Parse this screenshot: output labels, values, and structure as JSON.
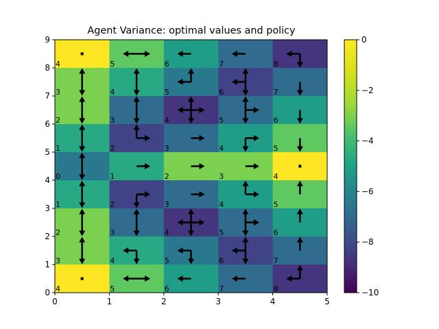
{
  "chart_data": {
    "type": "heatmap",
    "title": "Agent Variance: optimal values and policy",
    "xlabel": "",
    "ylabel": "",
    "xlim": [
      0,
      5
    ],
    "ylim": [
      0,
      9
    ],
    "x_ticks": [
      "0",
      "1",
      "2",
      "3",
      "4",
      "5"
    ],
    "y_ticks": [
      "0",
      "1",
      "2",
      "3",
      "4",
      "5",
      "6",
      "7",
      "8",
      "9"
    ],
    "colormap": "viridis",
    "colorbar": {
      "range": [
        -10,
        0
      ],
      "ticks": [
        "0",
        "−2",
        "−4",
        "−6",
        "−8",
        "−10"
      ]
    },
    "rows": [
      {
        "y": 8,
        "values": [
          0,
          -2.5,
          -4.5,
          -6.5,
          -8.5
        ],
        "labels": [
          "4",
          "5",
          "6",
          "7",
          "8"
        ],
        "arrows": [
          [],
          [
            "left",
            "right"
          ],
          [
            "left"
          ],
          [
            "left"
          ],
          [
            "left",
            "down"
          ]
        ]
      },
      {
        "y": 7,
        "values": [
          -2,
          -4,
          -6,
          -8,
          -6.5
        ],
        "labels": [
          "3",
          "4",
          "5",
          "6",
          "7"
        ],
        "arrows": [
          [
            "up",
            "down"
          ],
          [
            "up",
            "down"
          ],
          [
            "left",
            "up"
          ],
          [
            "left",
            "up",
            "down"
          ],
          [
            "down"
          ]
        ]
      },
      {
        "y": 6,
        "values": [
          -2,
          -6.5,
          -8.5,
          -6.5,
          -4.5
        ],
        "labels": [
          "2",
          "3",
          "4",
          "5",
          "6"
        ],
        "arrows": [
          [
            "up",
            "down"
          ],
          [
            "up",
            "down"
          ],
          [
            "left",
            "right",
            "up",
            "down"
          ],
          [
            "right",
            "up",
            "down"
          ],
          [
            "down"
          ]
        ]
      },
      {
        "y": 5,
        "values": [
          -4,
          -8,
          -6.5,
          -4.5,
          -2.5
        ],
        "labels": [
          "1",
          "2",
          "3",
          "4",
          "5"
        ],
        "arrows": [
          [
            "up",
            "down"
          ],
          [
            "up",
            "right"
          ],
          [
            "right"
          ],
          [
            "right",
            "down"
          ],
          [
            "down"
          ]
        ]
      },
      {
        "y": 4,
        "values": [
          -6,
          -4,
          -2,
          -2,
          0
        ],
        "labels": [
          "0",
          "1",
          "2",
          "3",
          "4"
        ],
        "arrows": [
          [
            "up",
            "down"
          ],
          [
            "right"
          ],
          [
            "right"
          ],
          [
            "right"
          ],
          []
        ]
      },
      {
        "y": 3,
        "values": [
          -4,
          -8,
          -6.5,
          -4.5,
          -2.5
        ],
        "labels": [
          "1",
          "2",
          "3",
          "4",
          "5"
        ],
        "arrows": [
          [
            "up",
            "down"
          ],
          [
            "down",
            "right"
          ],
          [
            "right"
          ],
          [
            "up",
            "right"
          ],
          [
            "up"
          ]
        ]
      },
      {
        "y": 2,
        "values": [
          -2,
          -6.5,
          -8.5,
          -6.5,
          -4.5
        ],
        "labels": [
          "2",
          "3",
          "4",
          "5",
          "6"
        ],
        "arrows": [
          [
            "up",
            "down"
          ],
          [
            "up",
            "down"
          ],
          [
            "left",
            "right",
            "up",
            "down"
          ],
          [
            "right",
            "up",
            "down"
          ],
          [
            "up"
          ]
        ]
      },
      {
        "y": 1,
        "values": [
          -2,
          -4,
          -6,
          -8,
          -6.5
        ],
        "labels": [
          "3",
          "4",
          "5",
          "6",
          "7"
        ],
        "arrows": [
          [
            "up",
            "down"
          ],
          [
            "left",
            "down"
          ],
          [
            "left",
            "down"
          ],
          [
            "left",
            "up",
            "down"
          ],
          [
            "up"
          ]
        ]
      },
      {
        "y": 0,
        "values": [
          0,
          -2.5,
          -4.5,
          -6.5,
          -8.5
        ],
        "labels": [
          "4",
          "5",
          "6",
          "7",
          "8"
        ],
        "arrows": [
          [],
          [
            "left",
            "right"
          ],
          [
            "left"
          ],
          [
            "left"
          ],
          [
            "left",
            "up"
          ]
        ]
      }
    ]
  }
}
